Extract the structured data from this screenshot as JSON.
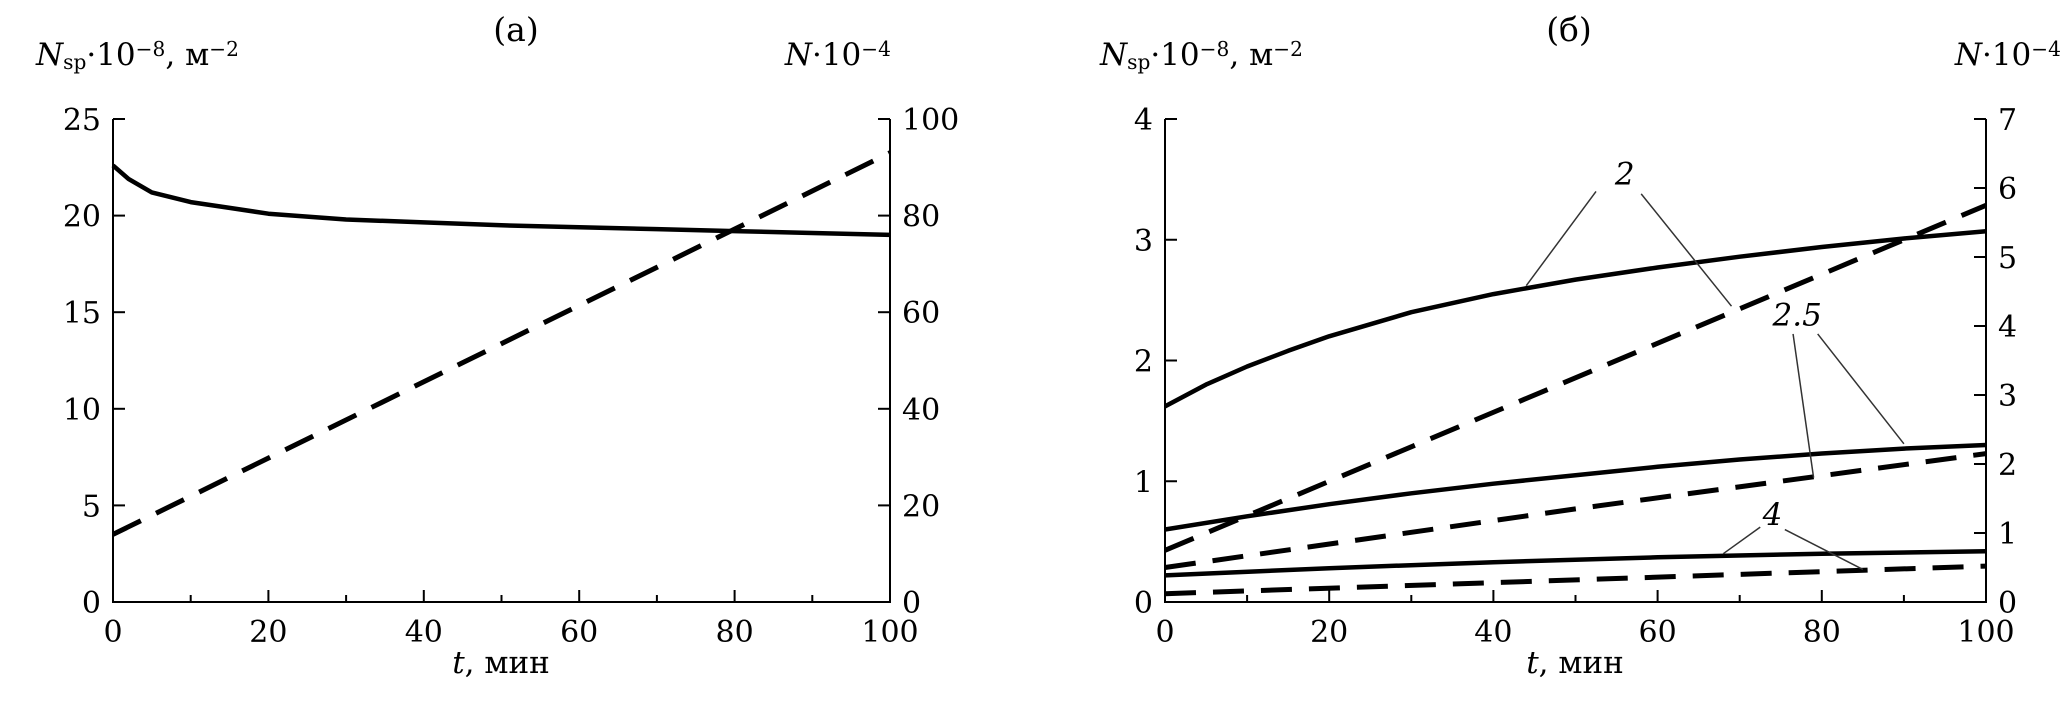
{
  "figure": {
    "background": "#ffffff",
    "text_color": "#000000",
    "panels": [
      {
        "panel_label": "(а)",
        "left_axis_title": {
          "var": "N",
          "sub": "sp",
          "mid": "·10",
          "sup1": "−8",
          "mid2": ", м",
          "sup2": "−2"
        },
        "right_axis_title": {
          "var": "N",
          "mid": "·10",
          "sup1": "−4"
        },
        "x_axis_title": {
          "var": "t",
          "mid": ", мин"
        }
      },
      {
        "panel_label": "(б)",
        "left_axis_title": {
          "var": "N",
          "sub": "sp",
          "mid": "·10",
          "sup1": "−8",
          "mid2": ", м",
          "sup2": "−2"
        },
        "right_axis_title": {
          "var": "N",
          "mid": "·10",
          "sup1": "−4"
        },
        "x_axis_title": {
          "var": "t",
          "mid": ", мин"
        }
      }
    ]
  },
  "chart_data": [
    {
      "type": "line",
      "title": "(а)",
      "xlabel": "t, мин",
      "ylabel_left": "Nₛₚ·10⁻⁸, м⁻²",
      "ylabel_right": "N·10⁻⁴",
      "x_range": [
        0,
        100
      ],
      "x_ticks": [
        0,
        20,
        40,
        60,
        80,
        100
      ],
      "x_minor_step": 10,
      "left_axis": {
        "range": [
          0,
          25
        ],
        "ticks": [
          0,
          5,
          10,
          15,
          20,
          25
        ]
      },
      "right_axis": {
        "range": [
          0,
          100
        ],
        "ticks": [
          0,
          20,
          40,
          60,
          80,
          100
        ]
      },
      "grid": false,
      "series": [
        {
          "name": "Nsp solid",
          "axis": "left",
          "style": "solid",
          "points": [
            [
              0,
              22.6
            ],
            [
              2,
              21.9
            ],
            [
              5,
              21.2
            ],
            [
              10,
              20.7
            ],
            [
              15,
              20.4
            ],
            [
              20,
              20.1
            ],
            [
              30,
              19.8
            ],
            [
              40,
              19.65
            ],
            [
              50,
              19.5
            ],
            [
              60,
              19.4
            ],
            [
              70,
              19.3
            ],
            [
              80,
              19.2
            ],
            [
              90,
              19.1
            ],
            [
              100,
              19.0
            ]
          ]
        },
        {
          "name": "N dashed",
          "axis": "right",
          "style": "dashed",
          "points": [
            [
              0,
              14
            ],
            [
              100,
              93
            ]
          ]
        }
      ],
      "annotations": []
    },
    {
      "type": "line",
      "title": "(б)",
      "xlabel": "t, мин",
      "ylabel_left": "Nₛₚ·10⁻⁸, м⁻²",
      "ylabel_right": "N·10⁻⁴",
      "x_range": [
        0,
        100
      ],
      "x_ticks": [
        0,
        20,
        40,
        60,
        80,
        100
      ],
      "x_minor_step": 10,
      "left_axis": {
        "range": [
          0,
          4
        ],
        "ticks": [
          0,
          1,
          2,
          3,
          4
        ]
      },
      "right_axis": {
        "range": [
          0,
          7
        ],
        "ticks": [
          0,
          1,
          2,
          3,
          4,
          5,
          6,
          7
        ]
      },
      "grid": false,
      "series": [
        {
          "name": "curve 2 solid",
          "axis": "left",
          "style": "solid",
          "points": [
            [
              0,
              1.62
            ],
            [
              5,
              1.8
            ],
            [
              10,
              1.95
            ],
            [
              15,
              2.08
            ],
            [
              20,
              2.2
            ],
            [
              30,
              2.4
            ],
            [
              40,
              2.55
            ],
            [
              50,
              2.67
            ],
            [
              60,
              2.77
            ],
            [
              70,
              2.86
            ],
            [
              80,
              2.94
            ],
            [
              90,
              3.01
            ],
            [
              100,
              3.07
            ]
          ]
        },
        {
          "name": "curve 2 dashed",
          "axis": "right",
          "style": "dashed",
          "points": [
            [
              0,
              0.75
            ],
            [
              100,
              5.75
            ]
          ]
        },
        {
          "name": "curve 2.5 solid",
          "axis": "left",
          "style": "solid",
          "points": [
            [
              0,
              0.6
            ],
            [
              10,
              0.71
            ],
            [
              20,
              0.81
            ],
            [
              30,
              0.9
            ],
            [
              40,
              0.98
            ],
            [
              50,
              1.05
            ],
            [
              60,
              1.12
            ],
            [
              70,
              1.18
            ],
            [
              80,
              1.23
            ],
            [
              90,
              1.27
            ],
            [
              100,
              1.3
            ]
          ]
        },
        {
          "name": "curve 2.5 dashed",
          "axis": "right",
          "style": "dashed",
          "points": [
            [
              0,
              0.5
            ],
            [
              50,
              1.35
            ],
            [
              100,
              2.15
            ]
          ]
        },
        {
          "name": "curve 4 solid",
          "axis": "left",
          "style": "solid",
          "points": [
            [
              0,
              0.22
            ],
            [
              20,
              0.28
            ],
            [
              40,
              0.33
            ],
            [
              60,
              0.37
            ],
            [
              80,
              0.4
            ],
            [
              100,
              0.42
            ]
          ]
        },
        {
          "name": "curve 4 dashed",
          "axis": "right",
          "style": "dashed",
          "points": [
            [
              0,
              0.12
            ],
            [
              100,
              0.52
            ]
          ]
        }
      ],
      "annotations": [
        {
          "text": "2",
          "x": 56,
          "y": 3.55,
          "leaders": [
            [
              52.5,
              3.4,
              44,
              2.62
            ],
            [
              58,
              3.38,
              69,
              2.45
            ]
          ]
        },
        {
          "text": "2.5",
          "x": 77,
          "y": 2.38,
          "leaders": [
            [
              76.5,
              2.22,
              79,
              1.03
            ],
            [
              79.5,
              2.22,
              90,
              1.31
            ]
          ]
        },
        {
          "text": "4",
          "x": 74,
          "y": 0.73,
          "leaders": [
            [
              72.5,
              0.62,
              68,
              0.4
            ],
            [
              75.5,
              0.6,
              85,
              0.27
            ]
          ]
        }
      ]
    }
  ]
}
